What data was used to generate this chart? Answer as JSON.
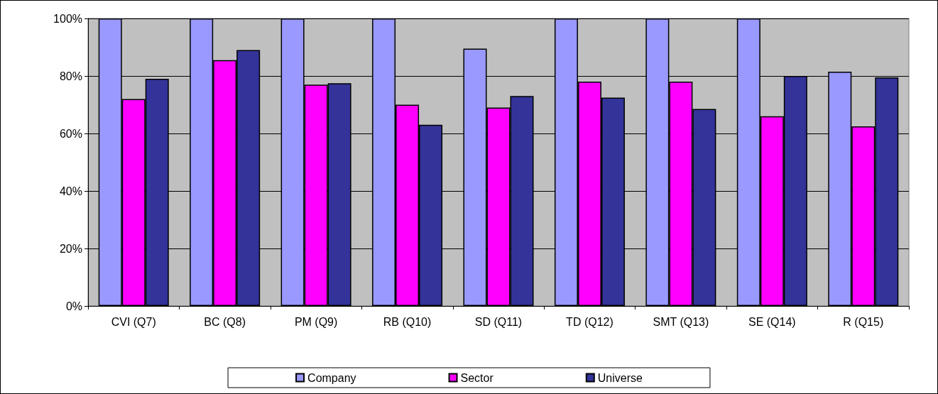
{
  "chart_data": {
    "type": "bar",
    "categories": [
      "CVI (Q7)",
      "BC (Q8)",
      "PM (Q9)",
      "RB (Q10)",
      "SD (Q11)",
      "TD (Q12)",
      "SMT (Q13)",
      "SE (Q14)",
      "R (Q15)"
    ],
    "series": [
      {
        "name": "Company",
        "color": "#9999ff",
        "values": [
          100,
          100,
          100,
          100,
          89.5,
          100,
          100,
          100,
          81.5
        ]
      },
      {
        "name": "Sector",
        "color": "#ff00ff",
        "values": [
          72,
          85.5,
          77,
          70,
          69,
          78,
          78,
          66,
          62.5
        ]
      },
      {
        "name": "Universe",
        "color": "#333399",
        "values": [
          79,
          89,
          77.5,
          63,
          73,
          72.5,
          68.5,
          80,
          79.5
        ]
      }
    ],
    "ylim": [
      0,
      100
    ],
    "yticks": [
      {
        "value": 0,
        "label": "0%"
      },
      {
        "value": 20,
        "label": "20%"
      },
      {
        "value": 40,
        "label": "40%"
      },
      {
        "value": 60,
        "label": "60%"
      },
      {
        "value": 80,
        "label": "80%"
      },
      {
        "value": 100,
        "label": "100%"
      }
    ],
    "grid": "y",
    "legend": "bottom"
  }
}
